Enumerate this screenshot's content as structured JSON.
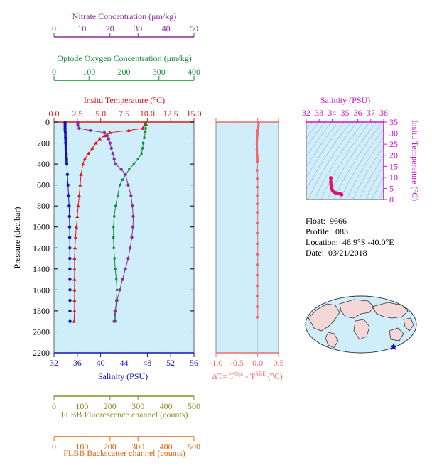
{
  "colors": {
    "nitrate": "#8b2c9a",
    "oxygen": "#168a3a",
    "temperature": "#e01414",
    "salinity": "#1414b4",
    "fluorescence": "#8c8c1e",
    "backscatter": "#e0640a",
    "delta_t": "#f06a6a",
    "ts_axis": "#d010c8",
    "plot_bg": "#cfeefa",
    "ts_points": "#e0106e"
  },
  "info": {
    "float_label": "Float:",
    "float_value": "9666",
    "profile_label": "Profile:",
    "profile_value": "083",
    "location_label": "Location:",
    "location_value": "48.9°S  -40.0°E",
    "date_label": "Date:",
    "date_value": "03/21/2018"
  },
  "map": {
    "description_icon": "world-map-icon",
    "marker_icon": "star-icon"
  },
  "chart_data": [
    {
      "type": "line",
      "name": "profile",
      "y_axis": {
        "label": "Pressure (decibar)",
        "lim": [
          2200,
          0
        ],
        "ticks": [
          "0",
          "200",
          "400",
          "600",
          "800",
          "1000",
          "1200",
          "1400",
          "1600",
          "1800",
          "2000",
          "2200"
        ]
      },
      "axes": {
        "nitrate": {
          "label": "Nitrate Concentration (μm/kg)",
          "lim": [
            0,
            50
          ],
          "ticks": [
            "0",
            "10",
            "20",
            "30",
            "40",
            "50"
          ]
        },
        "oxygen": {
          "label": "Optode Oxygen Concentration (μm/kg)",
          "lim": [
            0,
            400
          ],
          "ticks": [
            "0",
            "100",
            "200",
            "300",
            "400"
          ]
        },
        "temperature": {
          "label": "Insitu Temperature (°C)",
          "lim": [
            0,
            15
          ],
          "ticks": [
            "0.0",
            "2.5",
            "5.0",
            "7.5",
            "10.0",
            "12.5",
            "15.0"
          ]
        },
        "salinity": {
          "label": "Salinity (PSU)",
          "lim": [
            32,
            56
          ],
          "ticks": [
            "32",
            "36",
            "40",
            "44",
            "48",
            "52",
            "56"
          ]
        },
        "fluorescence": {
          "label": "FLBB Fluorescence channel (counts)",
          "lim": [
            0,
            500
          ],
          "ticks": [
            "0",
            "100",
            "200",
            "300",
            "400",
            "500"
          ]
        },
        "backscatter": {
          "label": "FLBB Backscatter channel (counts)",
          "lim": [
            0,
            500
          ],
          "ticks": [
            "0",
            "100",
            "200",
            "300",
            "400",
            "500"
          ]
        }
      },
      "series": [
        {
          "name": "Salinity",
          "axis": "salinity",
          "marker": "circle",
          "points": [
            [
              33.9,
              5
            ],
            [
              33.9,
              20
            ],
            [
              33.9,
              40
            ],
            [
              33.9,
              60
            ],
            [
              33.9,
              80
            ],
            [
              33.95,
              100
            ],
            [
              33.97,
              150
            ],
            [
              34.0,
              200
            ],
            [
              34.05,
              250
            ],
            [
              34.1,
              300
            ],
            [
              34.15,
              350
            ],
            [
              34.2,
              400
            ],
            [
              34.3,
              500
            ],
            [
              34.4,
              600
            ],
            [
              34.5,
              700
            ],
            [
              34.6,
              800
            ],
            [
              34.65,
              900
            ],
            [
              34.68,
              1000
            ],
            [
              34.7,
              1100
            ],
            [
              34.72,
              1200
            ],
            [
              34.72,
              1300
            ],
            [
              34.73,
              1400
            ],
            [
              34.73,
              1500
            ],
            [
              34.74,
              1600
            ],
            [
              34.74,
              1700
            ],
            [
              34.74,
              1800
            ],
            [
              34.75,
              1900
            ]
          ]
        },
        {
          "name": "Temperature",
          "axis": "temperature",
          "marker": "triangle",
          "points": [
            [
              9.8,
              5
            ],
            [
              9.7,
              30
            ],
            [
              9.5,
              60
            ],
            [
              8.0,
              80
            ],
            [
              6.0,
              100
            ],
            [
              5.4,
              130
            ],
            [
              4.9,
              160
            ],
            [
              4.5,
              200
            ],
            [
              4.1,
              250
            ],
            [
              3.7,
              300
            ],
            [
              3.3,
              350
            ],
            [
              3.1,
              400
            ],
            [
              2.9,
              500
            ],
            [
              2.8,
              600
            ],
            [
              2.7,
              700
            ],
            [
              2.6,
              800
            ],
            [
              2.5,
              900
            ],
            [
              2.4,
              1000
            ],
            [
              2.3,
              1100
            ],
            [
              2.25,
              1200
            ],
            [
              2.2,
              1300
            ],
            [
              2.2,
              1400
            ],
            [
              2.2,
              1500
            ],
            [
              2.2,
              1600
            ],
            [
              2.2,
              1700
            ],
            [
              2.2,
              1800
            ],
            [
              2.15,
              1900
            ]
          ]
        },
        {
          "name": "Oxygen",
          "axis": "oxygen",
          "marker": "square",
          "points": [
            [
              262,
              5
            ],
            [
              264,
              30
            ],
            [
              262,
              60
            ],
            [
              261,
              90
            ],
            [
              258,
              150
            ],
            [
              255,
              200
            ],
            [
              253,
              250
            ],
            [
              250,
              300
            ],
            [
              240,
              350
            ],
            [
              228,
              400
            ],
            [
              215,
              450
            ],
            [
              205,
              500
            ],
            [
              196,
              550
            ],
            [
              188,
              600
            ],
            [
              182,
              700
            ],
            [
              176,
              800
            ],
            [
              172,
              900
            ],
            [
              170,
              1000
            ],
            [
              170,
              1100
            ],
            [
              171,
              1200
            ],
            [
              173,
              1300
            ],
            [
              175,
              1400
            ],
            [
              178,
              1500
            ],
            [
              180,
              1600
            ],
            [
              178,
              1700
            ],
            [
              176,
              1800
            ],
            [
              175,
              1900
            ]
          ]
        },
        {
          "name": "Nitrate",
          "axis": "nitrate",
          "marker": "circle",
          "points": [
            [
              8.5,
              5
            ],
            [
              8.5,
              30
            ],
            [
              9.0,
              60
            ],
            [
              13,
              80
            ],
            [
              18,
              100
            ],
            [
              19,
              130
            ],
            [
              19.5,
              160
            ],
            [
              20,
              200
            ],
            [
              20.5,
              250
            ],
            [
              21,
              300
            ],
            [
              21.5,
              350
            ],
            [
              22,
              400
            ],
            [
              24,
              450
            ],
            [
              25.5,
              500
            ],
            [
              26.5,
              600
            ],
            [
              27.5,
              700
            ],
            [
              28,
              800
            ],
            [
              28.3,
              900
            ],
            [
              28.2,
              1000
            ],
            [
              27.8,
              1100
            ],
            [
              27.2,
              1200
            ],
            [
              26.5,
              1300
            ],
            [
              25.5,
              1400
            ],
            [
              24.5,
              1500
            ],
            [
              23.5,
              1600
            ],
            [
              22.5,
              1700
            ],
            [
              21.8,
              1800
            ],
            [
              21.5,
              1900
            ]
          ]
        }
      ]
    },
    {
      "type": "scatter",
      "name": "delta_t",
      "x_label_prefix": "ΔT= T",
      "sup1": "Opt",
      "x_label_mid": " - T",
      "sup2": "SBE",
      "x_label_suffix": " (°C)",
      "xlim": [
        -1.0,
        0.5
      ],
      "x_ticks": [
        "-1.0",
        "-0.5",
        "0.0",
        "0.5"
      ],
      "ylim": [
        2200,
        0
      ],
      "points": [
        [
          0.02,
          5
        ],
        [
          0.02,
          40
        ],
        [
          0.0,
          80
        ],
        [
          -0.01,
          130
        ],
        [
          -0.02,
          200
        ],
        [
          -0.02,
          260
        ],
        [
          -0.01,
          320
        ],
        [
          0.0,
          380
        ],
        [
          -0.01,
          460
        ],
        [
          0.0,
          540
        ],
        [
          0.0,
          620
        ],
        [
          0.0,
          700
        ],
        [
          0.0,
          780
        ],
        [
          0.0,
          860
        ],
        [
          0.0,
          960
        ],
        [
          0.0,
          1060
        ],
        [
          0.0,
          1160
        ],
        [
          0.0,
          1260
        ],
        [
          0.0,
          1360
        ],
        [
          0.0,
          1460
        ],
        [
          0.0,
          1560
        ],
        [
          0.0,
          1660
        ],
        [
          0.0,
          1760
        ],
        [
          0.0,
          1860
        ]
      ]
    },
    {
      "type": "scatter",
      "name": "ts_diagram",
      "x_label": "Salinity (PSU)",
      "y_label": "Insitu Temperature (°C)",
      "xlim": [
        32,
        38
      ],
      "ylim": [
        0,
        35
      ],
      "x_ticks": [
        "32",
        "33",
        "34",
        "35",
        "36",
        "37",
        "38"
      ],
      "y_ticks": [
        "0",
        "5",
        "10",
        "15",
        "20",
        "25",
        "30",
        "35"
      ],
      "points": [
        [
          33.9,
          9.8
        ],
        [
          33.9,
          9.5
        ],
        [
          33.9,
          8.0
        ],
        [
          33.92,
          7.0
        ],
        [
          33.93,
          6.0
        ],
        [
          33.95,
          5.2
        ],
        [
          34.0,
          4.5
        ],
        [
          34.05,
          4.0
        ],
        [
          34.1,
          3.6
        ],
        [
          34.2,
          3.2
        ],
        [
          34.3,
          3.0
        ],
        [
          34.4,
          2.8
        ],
        [
          34.5,
          2.7
        ],
        [
          34.6,
          2.6
        ],
        [
          34.65,
          2.5
        ],
        [
          34.7,
          2.4
        ],
        [
          34.72,
          2.3
        ],
        [
          34.74,
          2.2
        ],
        [
          34.75,
          2.15
        ]
      ]
    }
  ]
}
